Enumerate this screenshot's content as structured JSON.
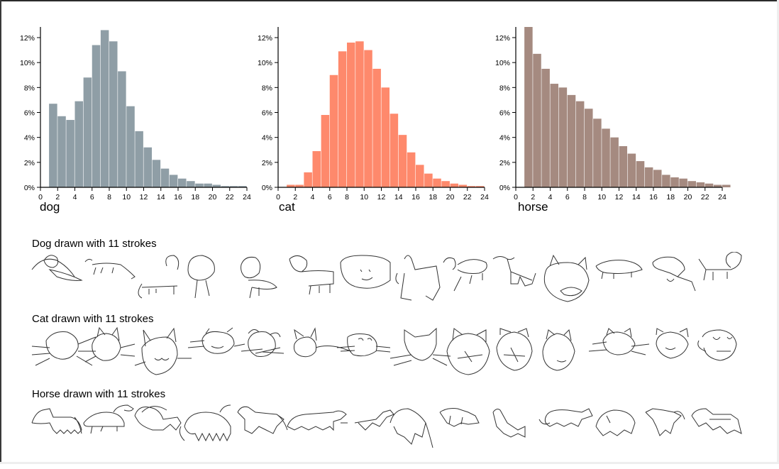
{
  "chart_data": [
    {
      "type": "bar",
      "title": "",
      "label": "dog",
      "xlabel": "dog",
      "ylabel": "",
      "x_ticks": [
        "0",
        "2",
        "4",
        "6",
        "8",
        "10",
        "12",
        "14",
        "16",
        "18",
        "20",
        "22",
        "24"
      ],
      "y_ticks": [
        "0%",
        "2%",
        "4%",
        "6%",
        "8%",
        "10%",
        "12%"
      ],
      "xlim": [
        0,
        24
      ],
      "ylim": [
        0,
        12.9
      ],
      "grid": false,
      "color": "#8f9ea6",
      "categories": [
        1,
        2,
        3,
        4,
        5,
        6,
        7,
        8,
        9,
        10,
        11,
        12,
        13,
        14,
        15,
        16,
        17,
        18,
        19,
        20,
        21,
        22,
        23
      ],
      "values": [
        6.7,
        5.7,
        5.4,
        6.9,
        8.8,
        11.4,
        12.6,
        11.7,
        9.3,
        6.5,
        4.5,
        3.2,
        2.2,
        1.5,
        1.0,
        0.7,
        0.5,
        0.3,
        0.3,
        0.2,
        0.1,
        0.1,
        0.1
      ]
    },
    {
      "type": "bar",
      "title": "",
      "label": "cat",
      "xlabel": "cat",
      "ylabel": "",
      "x_ticks": [
        "0",
        "2",
        "4",
        "6",
        "8",
        "10",
        "12",
        "14",
        "16",
        "18",
        "20",
        "22",
        "24"
      ],
      "y_ticks": [
        "0%",
        "2%",
        "4%",
        "6%",
        "8%",
        "10%",
        "12%"
      ],
      "xlim": [
        0,
        24
      ],
      "ylim": [
        0,
        12.9
      ],
      "grid": false,
      "color": "#fe896c",
      "categories": [
        1,
        2,
        3,
        4,
        5,
        6,
        7,
        8,
        9,
        10,
        11,
        12,
        13,
        14,
        15,
        16,
        17,
        18,
        19,
        20,
        21,
        22,
        23
      ],
      "values": [
        0.2,
        0.2,
        1.2,
        2.9,
        5.8,
        9.0,
        10.9,
        11.6,
        11.7,
        11.0,
        9.5,
        8.0,
        5.9,
        4.2,
        2.8,
        1.8,
        1.1,
        0.7,
        0.5,
        0.3,
        0.2,
        0.1,
        0.1
      ]
    },
    {
      "type": "bar",
      "title": "",
      "label": "horse",
      "xlabel": "horse",
      "ylabel": "",
      "x_ticks": [
        "0",
        "2",
        "4",
        "6",
        "8",
        "10",
        "12",
        "14",
        "16",
        "18",
        "20",
        "22",
        "24"
      ],
      "y_ticks": [
        "0%",
        "2%",
        "4%",
        "6%",
        "8%",
        "10%",
        "12%"
      ],
      "xlim": [
        0,
        24
      ],
      "ylim": [
        0,
        12.9
      ],
      "grid": false,
      "color": "#a58a80",
      "categories": [
        1,
        2,
        3,
        4,
        5,
        6,
        7,
        8,
        9,
        10,
        11,
        12,
        13,
        14,
        15,
        16,
        17,
        18,
        19,
        20,
        21,
        22,
        23,
        24
      ],
      "values": [
        12.9,
        10.7,
        9.5,
        8.3,
        8.0,
        7.4,
        6.9,
        6.3,
        5.5,
        4.7,
        4.0,
        3.3,
        2.7,
        2.1,
        1.6,
        1.4,
        1.0,
        0.8,
        0.7,
        0.5,
        0.4,
        0.3,
        0.2,
        0.2
      ]
    }
  ],
  "sections": [
    {
      "title": "Dog drawn with 11 strokes",
      "sketch_count": 15
    },
    {
      "title": "Cat drawn with 11 strokes",
      "sketch_count": 15
    },
    {
      "title": "Horse drawn with 11 strokes",
      "sketch_count": 15
    }
  ]
}
